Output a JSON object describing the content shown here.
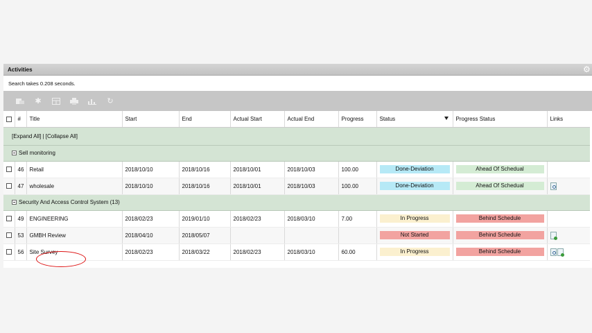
{
  "panel": {
    "title": "Activities"
  },
  "search_info": "Search takes 0.208 seconds.",
  "toolbar_icons": [
    "export-icon",
    "settings-icon",
    "columns-icon",
    "print-icon",
    "chart-icon",
    "refresh-icon"
  ],
  "columns": {
    "num": "#",
    "title": "Title",
    "start": "Start",
    "end": "End",
    "actual_start": "Actual Start",
    "actual_end": "Actual End",
    "progress": "Progress",
    "status": "Status",
    "progress_status": "Progress Status",
    "links": "Links"
  },
  "expand_all": "[Expand All]",
  "separator": " | ",
  "collapse_all": "[Collapse All]",
  "groups": [
    {
      "label": "Sell monitoring"
    },
    {
      "label": "Security And Access Control System (13)"
    }
  ],
  "rows": [
    {
      "num": "46",
      "title": "Retail",
      "start": "2018/10/10",
      "end": "2018/10/16",
      "actual_start": "2018/10/01",
      "actual_end": "2018/10/03",
      "progress": "100.00",
      "status": "Done-Deviation",
      "progress_status": "Ahead Of Schedual"
    },
    {
      "num": "47",
      "title": "wholesale",
      "start": "2018/10/10",
      "end": "2018/10/16",
      "actual_start": "2018/10/01",
      "actual_end": "2018/10/03",
      "progress": "100.00",
      "status": "Done-Deviation",
      "progress_status": "Ahead Of Schedual"
    },
    {
      "num": "49",
      "title": "ENGINEERING",
      "start": "2018/02/23",
      "end": "2019/01/10",
      "actual_start": "2018/02/23",
      "actual_end": "2018/03/10",
      "progress": "7.00",
      "status": "In Progress",
      "progress_status": "Behind Schedule"
    },
    {
      "num": "53",
      "title": "GMBH Review",
      "start": "2018/04/10",
      "end": "2018/05/07",
      "actual_start": "",
      "actual_end": "",
      "progress": "",
      "status": "Not Started",
      "progress_status": "Behind Schedule"
    },
    {
      "num": "56",
      "title": "Site Survey",
      "start": "2018/02/23",
      "end": "2018/03/22",
      "actual_start": "2018/02/23",
      "actual_end": "2018/03/10",
      "progress": "60.00",
      "status": "In Progress",
      "progress_status": "Behind Schedule"
    }
  ],
  "colors": {
    "status_done": "#b6e9f6",
    "status_in_progress": "#fbf0cf",
    "status_not_started": "#f2a3a0",
    "ahead": "#d4ecd4",
    "behind": "#f2a3a0",
    "group_bg": "#d4e4d4",
    "toolbar_bg": "#c6c6c6",
    "highlight": "#dd1111"
  }
}
